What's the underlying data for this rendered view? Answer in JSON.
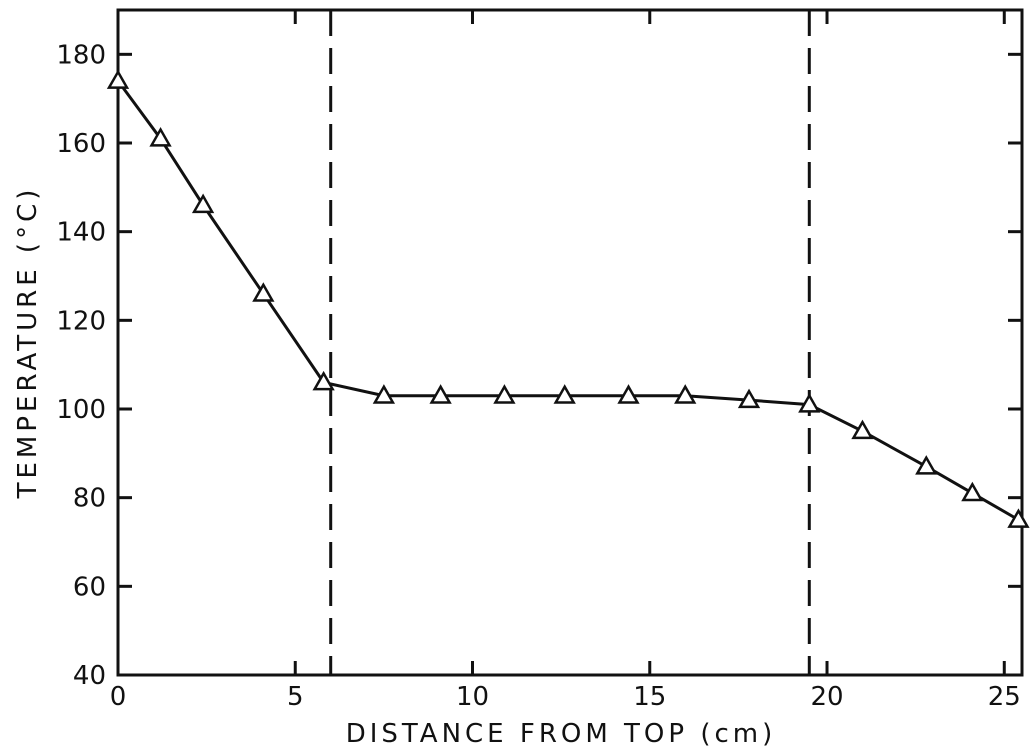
{
  "chart_data": {
    "type": "line",
    "title": "",
    "xlabel": "DISTANCE FROM TOP (cm)",
    "ylabel": "TEMPERATURE (°C)",
    "xlim": [
      0,
      25.5
    ],
    "ylim": [
      40,
      190
    ],
    "x_ticks": [
      0,
      5,
      10,
      15,
      20,
      25
    ],
    "y_ticks": [
      40,
      60,
      80,
      100,
      120,
      140,
      160,
      180
    ],
    "x_tick_labels": [
      "0",
      "5",
      "10",
      "15",
      "20",
      "25"
    ],
    "y_tick_labels": [
      "40",
      "60",
      "80",
      "100",
      "120",
      "140",
      "160",
      "180"
    ],
    "grid": false,
    "marker": "open-triangle",
    "series": [
      {
        "x": [
          0.0,
          1.2,
          2.4,
          4.1,
          5.8,
          7.5,
          9.1,
          10.9,
          12.6,
          14.4,
          16.0,
          17.8,
          19.5,
          21.0,
          22.8,
          24.1,
          25.4
        ],
        "y": [
          174,
          161,
          146,
          126,
          106,
          103,
          103,
          103,
          103,
          103,
          103,
          102,
          101,
          95,
          87,
          81,
          75
        ]
      }
    ],
    "vertical_dashed_lines_x": [
      6.0,
      19.5
    ],
    "colors": {
      "line": "#111111",
      "background": "#ffffff"
    }
  }
}
